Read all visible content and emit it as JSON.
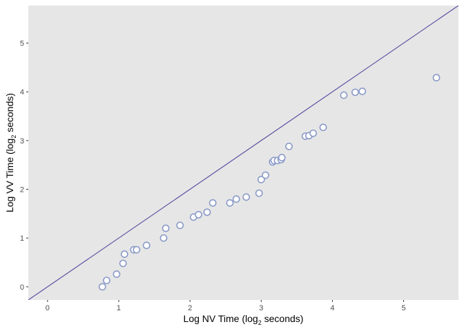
{
  "chart_data": {
    "type": "scatter",
    "title": "",
    "xlabel": {
      "prefix": "Log NV Time (log",
      "sub": "2",
      "suffix": " seconds)"
    },
    "ylabel": {
      "prefix": "Log VV Time (log",
      "sub": "2",
      "suffix": " seconds)"
    },
    "xlim": [
      -0.27,
      5.77
    ],
    "ylim": [
      -0.27,
      5.77
    ],
    "xticks": [
      0,
      1,
      2,
      3,
      4,
      5
    ],
    "yticks": [
      0,
      1,
      2,
      3,
      4,
      5
    ],
    "grid": false,
    "reference_line": {
      "slope": 1,
      "intercept": 0,
      "color": "#5b52a3"
    },
    "colors": {
      "panel": "#e6e6e6",
      "point_fill": "#ffffff",
      "point_stroke": "#8a9ac8"
    },
    "points": [
      {
        "x": 0.77,
        "y": 0.0
      },
      {
        "x": 0.83,
        "y": 0.13
      },
      {
        "x": 0.97,
        "y": 0.26
      },
      {
        "x": 1.06,
        "y": 0.48
      },
      {
        "x": 1.08,
        "y": 0.67
      },
      {
        "x": 1.21,
        "y": 0.76
      },
      {
        "x": 1.25,
        "y": 0.76
      },
      {
        "x": 1.39,
        "y": 0.85
      },
      {
        "x": 1.63,
        "y": 1.0
      },
      {
        "x": 1.66,
        "y": 1.2
      },
      {
        "x": 1.86,
        "y": 1.26
      },
      {
        "x": 2.05,
        "y": 1.43
      },
      {
        "x": 2.12,
        "y": 1.48
      },
      {
        "x": 2.24,
        "y": 1.53
      },
      {
        "x": 2.32,
        "y": 1.72
      },
      {
        "x": 2.56,
        "y": 1.72
      },
      {
        "x": 2.65,
        "y": 1.8
      },
      {
        "x": 2.79,
        "y": 1.84
      },
      {
        "x": 2.97,
        "y": 1.92
      },
      {
        "x": 3.0,
        "y": 2.2
      },
      {
        "x": 3.06,
        "y": 2.29
      },
      {
        "x": 3.16,
        "y": 2.56
      },
      {
        "x": 3.18,
        "y": 2.59
      },
      {
        "x": 3.23,
        "y": 2.59
      },
      {
        "x": 3.28,
        "y": 2.61
      },
      {
        "x": 3.29,
        "y": 2.65
      },
      {
        "x": 3.39,
        "y": 2.88
      },
      {
        "x": 3.62,
        "y": 3.09
      },
      {
        "x": 3.67,
        "y": 3.1
      },
      {
        "x": 3.73,
        "y": 3.15
      },
      {
        "x": 3.87,
        "y": 3.27
      },
      {
        "x": 4.16,
        "y": 3.93
      },
      {
        "x": 4.32,
        "y": 3.99
      },
      {
        "x": 4.42,
        "y": 4.01
      },
      {
        "x": 5.46,
        "y": 4.29
      }
    ]
  }
}
